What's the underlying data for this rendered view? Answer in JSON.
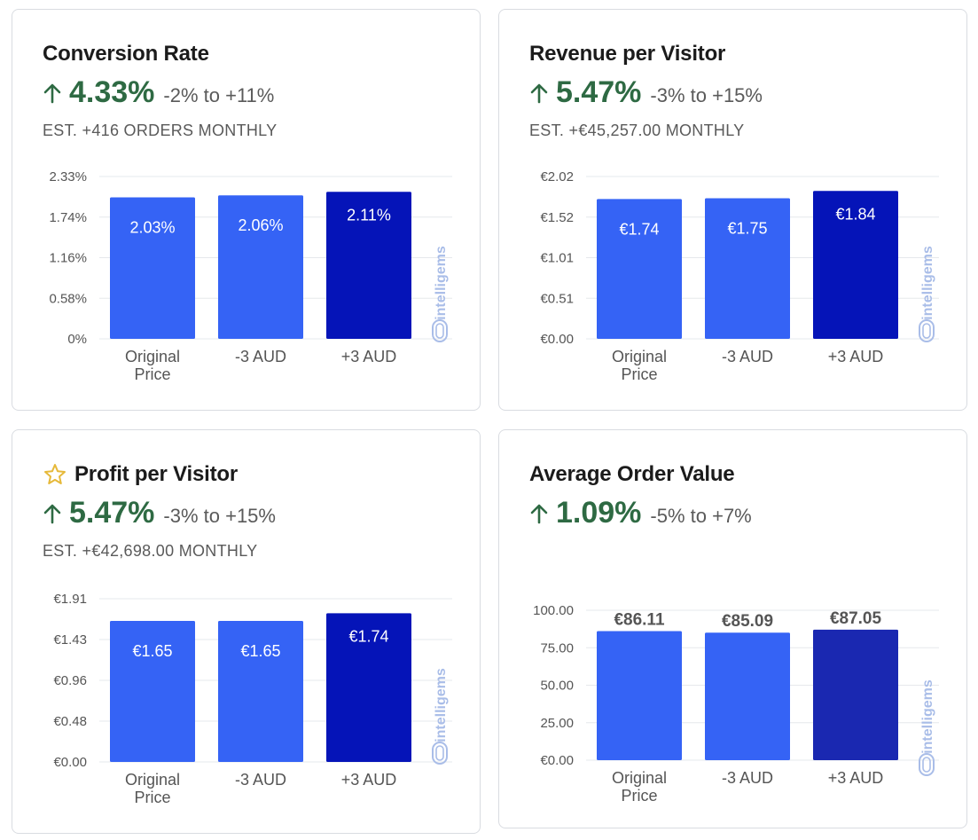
{
  "colors": {
    "bar_light": "#3563f5",
    "bar_dark_1": "#0514b8",
    "bar_dark_2": "#1a28b1",
    "positive": "#2e6a43",
    "muted": "#5a5a5a",
    "star": "#e6b93a",
    "logo": "#a9bde8"
  },
  "icons": {
    "up_arrow": "arrow-up-icon",
    "star": "star-icon",
    "logo": "intelligems-logo"
  },
  "brand": "intelligems",
  "cards": [
    {
      "title": "Conversion Rate",
      "starred": false,
      "lift": "4.33%",
      "range": "-2% to +11%",
      "estimate": "EST. +416 ORDERS MONTHLY"
    },
    {
      "title": "Revenue per Visitor",
      "starred": false,
      "lift": "5.47%",
      "range": "-3% to +15%",
      "estimate": "EST. +€45,257.00 MONTHLY"
    },
    {
      "title": "Profit per Visitor",
      "starred": true,
      "lift": "5.47%",
      "range": "-3% to +15%",
      "estimate": "EST. +€42,698.00 MONTHLY"
    },
    {
      "title": "Average Order Value",
      "starred": false,
      "lift": "1.09%",
      "range": "-5% to +7%",
      "estimate": ""
    }
  ],
  "chart_data": [
    {
      "type": "bar",
      "categories": [
        [
          "Original",
          "Price"
        ],
        [
          "-3 AUD"
        ],
        [
          "+3 AUD"
        ]
      ],
      "values": [
        2.03,
        2.06,
        2.11
      ],
      "data_labels": [
        "2.03%",
        "2.06%",
        "2.11%"
      ],
      "label_position": "inside",
      "y_ticks": [
        "2.33%",
        "1.74%",
        "1.16%",
        "0.58%",
        "0%"
      ],
      "ylim": [
        0,
        2.33
      ],
      "grid": true,
      "bar_colors": [
        "#3563f5",
        "#3563f5",
        "#0514b8"
      ]
    },
    {
      "type": "bar",
      "categories": [
        [
          "Original",
          "Price"
        ],
        [
          "-3 AUD"
        ],
        [
          "+3 AUD"
        ]
      ],
      "values": [
        1.74,
        1.75,
        1.84
      ],
      "data_labels": [
        "€1.74",
        "€1.75",
        "€1.84"
      ],
      "label_position": "inside",
      "y_ticks": [
        "€2.02",
        "€1.52",
        "€1.01",
        "€0.51",
        "€0.00"
      ],
      "ylim": [
        0,
        2.02
      ],
      "grid": true,
      "bar_colors": [
        "#3563f5",
        "#3563f5",
        "#0514b8"
      ]
    },
    {
      "type": "bar",
      "categories": [
        [
          "Original",
          "Price"
        ],
        [
          "-3 AUD"
        ],
        [
          "+3 AUD"
        ]
      ],
      "values": [
        1.65,
        1.65,
        1.74
      ],
      "data_labels": [
        "€1.65",
        "€1.65",
        "€1.74"
      ],
      "label_position": "inside",
      "y_ticks": [
        "€1.91",
        "€1.43",
        "€0.96",
        "€0.48",
        "€0.00"
      ],
      "ylim": [
        0,
        1.91
      ],
      "grid": true,
      "bar_colors": [
        "#3563f5",
        "#3563f5",
        "#0514b8"
      ]
    },
    {
      "type": "bar",
      "categories": [
        [
          "Original",
          "Price"
        ],
        [
          "-3 AUD"
        ],
        [
          "+3 AUD"
        ]
      ],
      "values": [
        86.11,
        85.09,
        87.05
      ],
      "data_labels": [
        "€86.11",
        "€85.09",
        "€87.05"
      ],
      "label_position": "above",
      "y_ticks": [
        "100.00",
        "75.00",
        "50.00",
        "25.00",
        "€0.00"
      ],
      "ylim": [
        0,
        100
      ],
      "grid": true,
      "bar_colors": [
        "#3563f5",
        "#3563f5",
        "#1a28b1"
      ]
    }
  ]
}
